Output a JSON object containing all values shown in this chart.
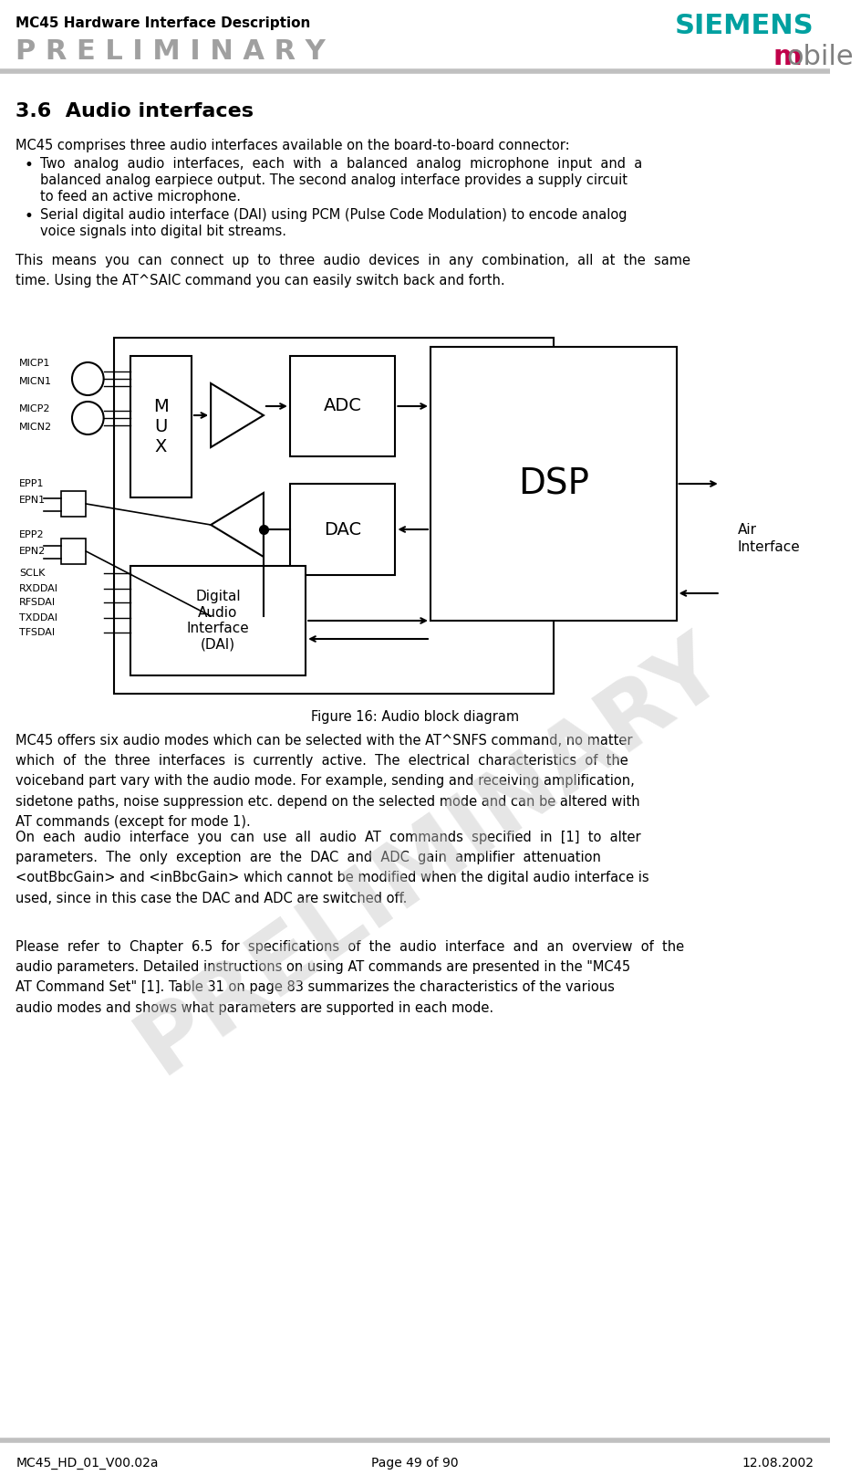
{
  "header_title": "MC45 Hardware Interface Description",
  "header_prelim": "P R E L I M I N A R Y",
  "siemens_color": "#00a0a0",
  "mobile_m_color": "#c0004a",
  "footer_left": "MC45_HD_01_V00.02a",
  "footer_center": "Page 49 of 90",
  "footer_right": "12.08.2002",
  "section_title": "3.6  Audio interfaces",
  "body_text_1": "MC45 comprises three audio interfaces available on the board-to-board connector:",
  "bullet1_line1": "Two  analog  audio  interfaces,  each  with  a  balanced  analog  microphone  input  and  a",
  "bullet1_line2": "balanced analog earpiece output. The second analog interface provides a supply circuit",
  "bullet1_line3": "to feed an active microphone.",
  "bullet2_line1": "Serial digital audio interface (DAI) using PCM (Pulse Code Modulation) to encode analog",
  "bullet2_line2": "voice signals into digital bit streams.",
  "body_text_2": "This  means  you  can  connect  up  to  three  audio  devices  in  any  combination,  all  at  the  same\ntime. Using the AT^SAIC command you can easily switch back and forth.",
  "figure_caption": "Figure 16: Audio block diagram",
  "body_text_3": "MC45 offers six audio modes which can be selected with the AT^SNFS command, no matter\nwhich  of  the  three  interfaces  is  currently  active.  The  electrical  characteristics  of  the\nvoiceband part vary with the audio mode. For example, sending and receiving amplification,\nsidetone paths, noise suppression etc. depend on the selected mode and can be altered with\nAT commands (except for mode 1).",
  "body_text_4": "On  each  audio  interface  you  can  use  all  audio  AT  commands  specified  in  [1]  to  alter\nparameters.  The  only  exception  are  the  DAC  and  ADC  gain  amplifier  attenuation\n<outBbcGain> and <inBbcGain> which cannot be modified when the digital audio interface is\nused, since in this case the DAC and ADC are switched off.",
  "body_text_5": "Please  refer  to  Chapter  6.5  for  specifications  of  the  audio  interface  and  an  overview  of  the\naudio parameters. Detailed instructions on using AT commands are presented in the \"MC45\nAT Command Set\" [1]. Table 31 on page 83 summarizes the characteristics of the various\naudio modes and shows what parameters are supported in each mode.",
  "watermark_text": "PRELIMINARY",
  "bg_color": "#ffffff",
  "text_color": "#000000",
  "gray_color": "#808080"
}
